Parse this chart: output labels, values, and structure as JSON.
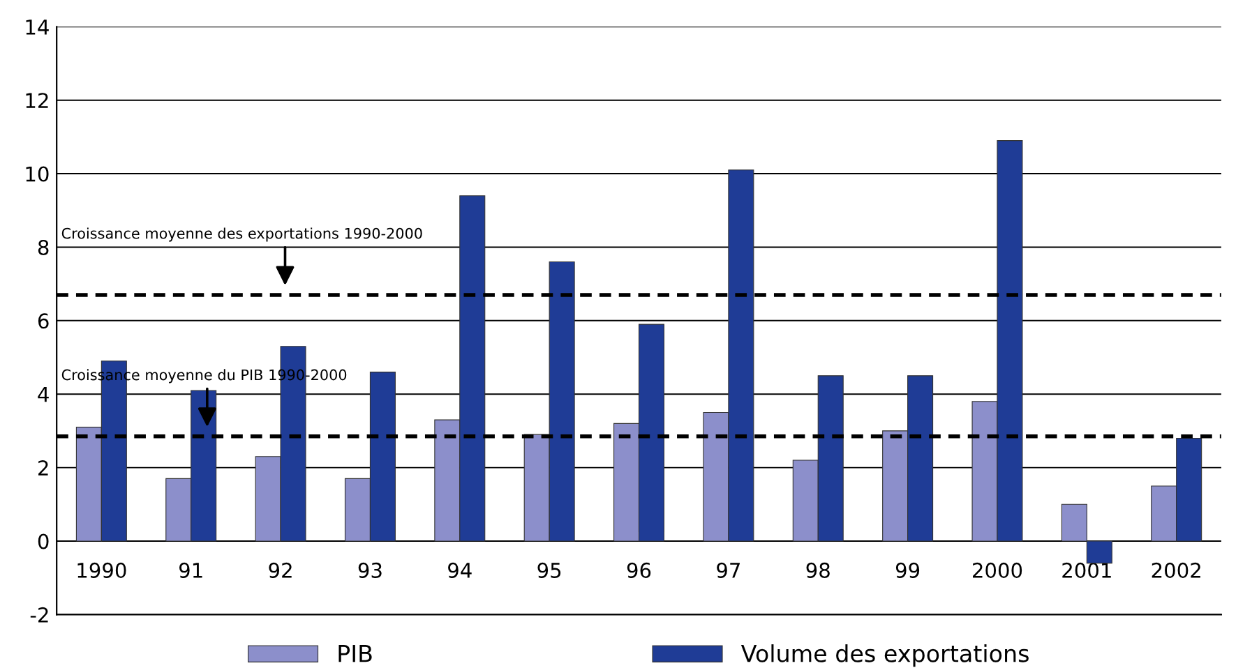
{
  "chart_data": {
    "type": "bar",
    "categories": [
      "1990",
      "91",
      "92",
      "93",
      "94",
      "95",
      "96",
      "97",
      "98",
      "99",
      "2000",
      "2001",
      "2002"
    ],
    "series": [
      {
        "name": "PIB",
        "color": "#8c8fcb",
        "values": [
          3.1,
          1.7,
          2.3,
          1.7,
          3.3,
          2.9,
          3.2,
          3.5,
          2.2,
          3.0,
          3.8,
          1.0,
          1.5
        ]
      },
      {
        "name": "Volume des exportations",
        "color": "#1f3c96",
        "values": [
          4.9,
          4.1,
          5.3,
          4.6,
          9.4,
          7.6,
          5.9,
          10.1,
          4.5,
          4.5,
          10.9,
          -0.6,
          2.8
        ]
      }
    ],
    "ylim": [
      -2,
      14
    ],
    "yticks": [
      -2,
      0,
      2,
      4,
      6,
      8,
      10,
      12,
      14
    ],
    "grid": "y",
    "legend": "bottom",
    "ref_lines": [
      {
        "axis": "y",
        "value": 6.7,
        "label": "Croissance moyenne des exportations 1990-2000",
        "color": "#000000",
        "line_style": "dashed"
      },
      {
        "axis": "y",
        "value": 2.85,
        "label": "Croissance moyenne du PIB 1990-2000",
        "color": "#000000",
        "line_style": "dashed"
      }
    ]
  }
}
